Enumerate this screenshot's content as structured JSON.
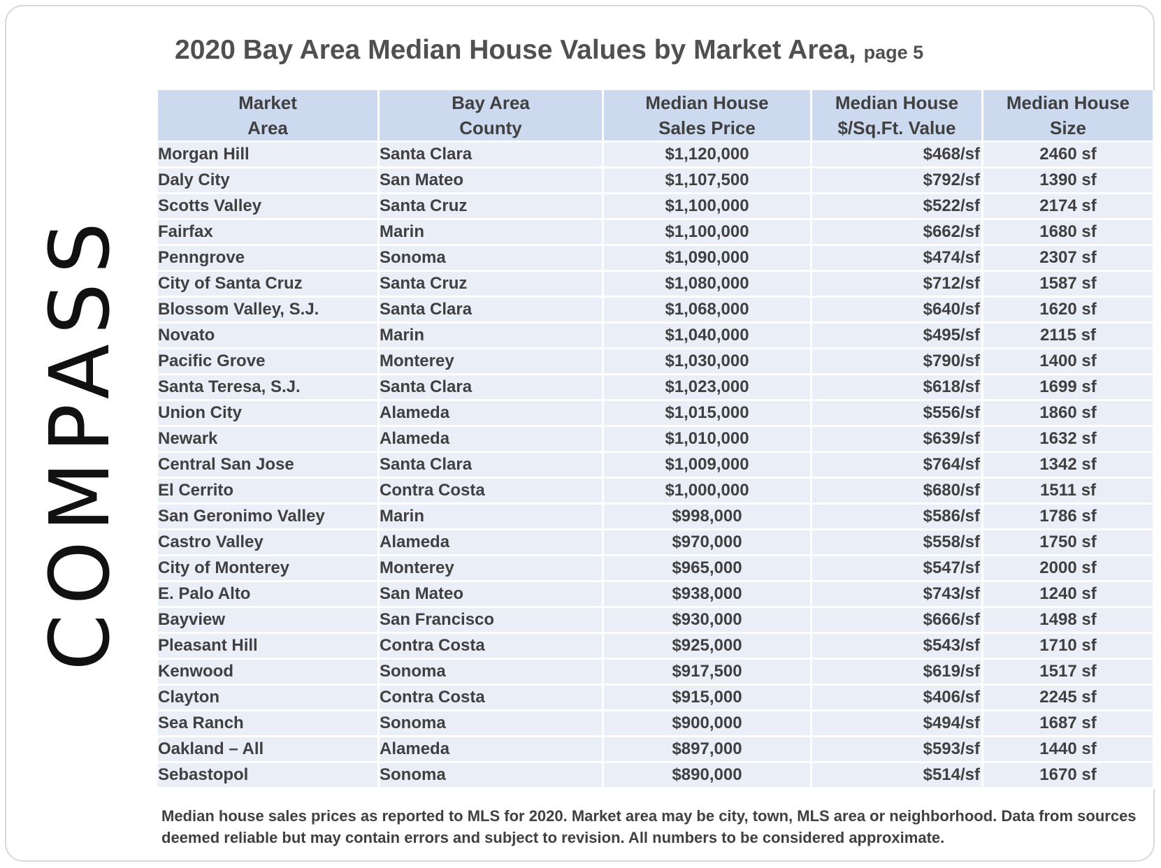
{
  "logo": "COMPASS",
  "title": "2020 Bay Area Median House Values by Market Area,",
  "subtitle": "page 5",
  "table": {
    "header": [
      "Market\nArea",
      "Bay Area\nCounty",
      "Median House\nSales Price",
      "Median House\n$/Sq.Ft. Value",
      "Median House\nSize"
    ],
    "rows": [
      [
        "Morgan Hill",
        "Santa Clara",
        "$1,120,000",
        "$468/sf",
        "2460 sf"
      ],
      [
        "Daly City",
        "San Mateo",
        "$1,107,500",
        "$792/sf",
        "1390 sf"
      ],
      [
        "Scotts Valley",
        "Santa Cruz",
        "$1,100,000",
        "$522/sf",
        "2174 sf"
      ],
      [
        "Fairfax",
        "Marin",
        "$1,100,000",
        "$662/sf",
        "1680 sf"
      ],
      [
        "Penngrove",
        "Sonoma",
        "$1,090,000",
        "$474/sf",
        "2307 sf"
      ],
      [
        "City of Santa Cruz",
        "Santa Cruz",
        "$1,080,000",
        "$712/sf",
        "1587 sf"
      ],
      [
        "Blossom Valley, S.J.",
        "Santa Clara",
        "$1,068,000",
        "$640/sf",
        "1620 sf"
      ],
      [
        "Novato",
        "Marin",
        "$1,040,000",
        "$495/sf",
        "2115 sf"
      ],
      [
        "Pacific Grove",
        "Monterey",
        "$1,030,000",
        "$790/sf",
        "1400 sf"
      ],
      [
        "Santa Teresa, S.J.",
        "Santa Clara",
        "$1,023,000",
        "$618/sf",
        "1699 sf"
      ],
      [
        "Union City",
        "Alameda",
        "$1,015,000",
        "$556/sf",
        "1860 sf"
      ],
      [
        "Newark",
        "Alameda",
        "$1,010,000",
        "$639/sf",
        "1632 sf"
      ],
      [
        "Central San Jose",
        "Santa Clara",
        "$1,009,000",
        "$764/sf",
        "1342 sf"
      ],
      [
        "El Cerrito",
        "Contra Costa",
        "$1,000,000",
        "$680/sf",
        "1511 sf"
      ],
      [
        "San Geronimo Valley",
        "Marin",
        "$998,000",
        "$586/sf",
        "1786 sf"
      ],
      [
        "Castro Valley",
        "Alameda",
        "$970,000",
        "$558/sf",
        "1750 sf"
      ],
      [
        "City of Monterey",
        "Monterey",
        "$965,000",
        "$547/sf",
        "2000 sf"
      ],
      [
        "E. Palo Alto",
        "San Mateo",
        "$938,000",
        "$743/sf",
        "1240 sf"
      ],
      [
        "Bayview",
        "San Francisco",
        "$930,000",
        "$666/sf",
        "1498 sf"
      ],
      [
        "Pleasant Hill",
        "Contra Costa",
        "$925,000",
        "$543/sf",
        "1710 sf"
      ],
      [
        "Kenwood",
        "Sonoma",
        "$917,500",
        "$619/sf",
        "1517 sf"
      ],
      [
        "Clayton",
        "Contra Costa",
        "$915,000",
        "$406/sf",
        "2245 sf"
      ],
      [
        "Sea Ranch",
        "Sonoma",
        "$900,000",
        "$494/sf",
        "1687 sf"
      ],
      [
        "Oakland – All",
        "Alameda",
        "$897,000",
        "$593/sf",
        "1440 sf"
      ],
      [
        "Sebastopol",
        "Sonoma",
        "$890,000",
        "$514/sf",
        "1670 sf"
      ]
    ]
  },
  "footnote": "Median house sales prices as reported to MLS for 2020. Market area may be city, town, MLS area or neighborhood. Data from sources deemed reliable but may contain errors and subject to revision. All numbers to be considered approximate."
}
